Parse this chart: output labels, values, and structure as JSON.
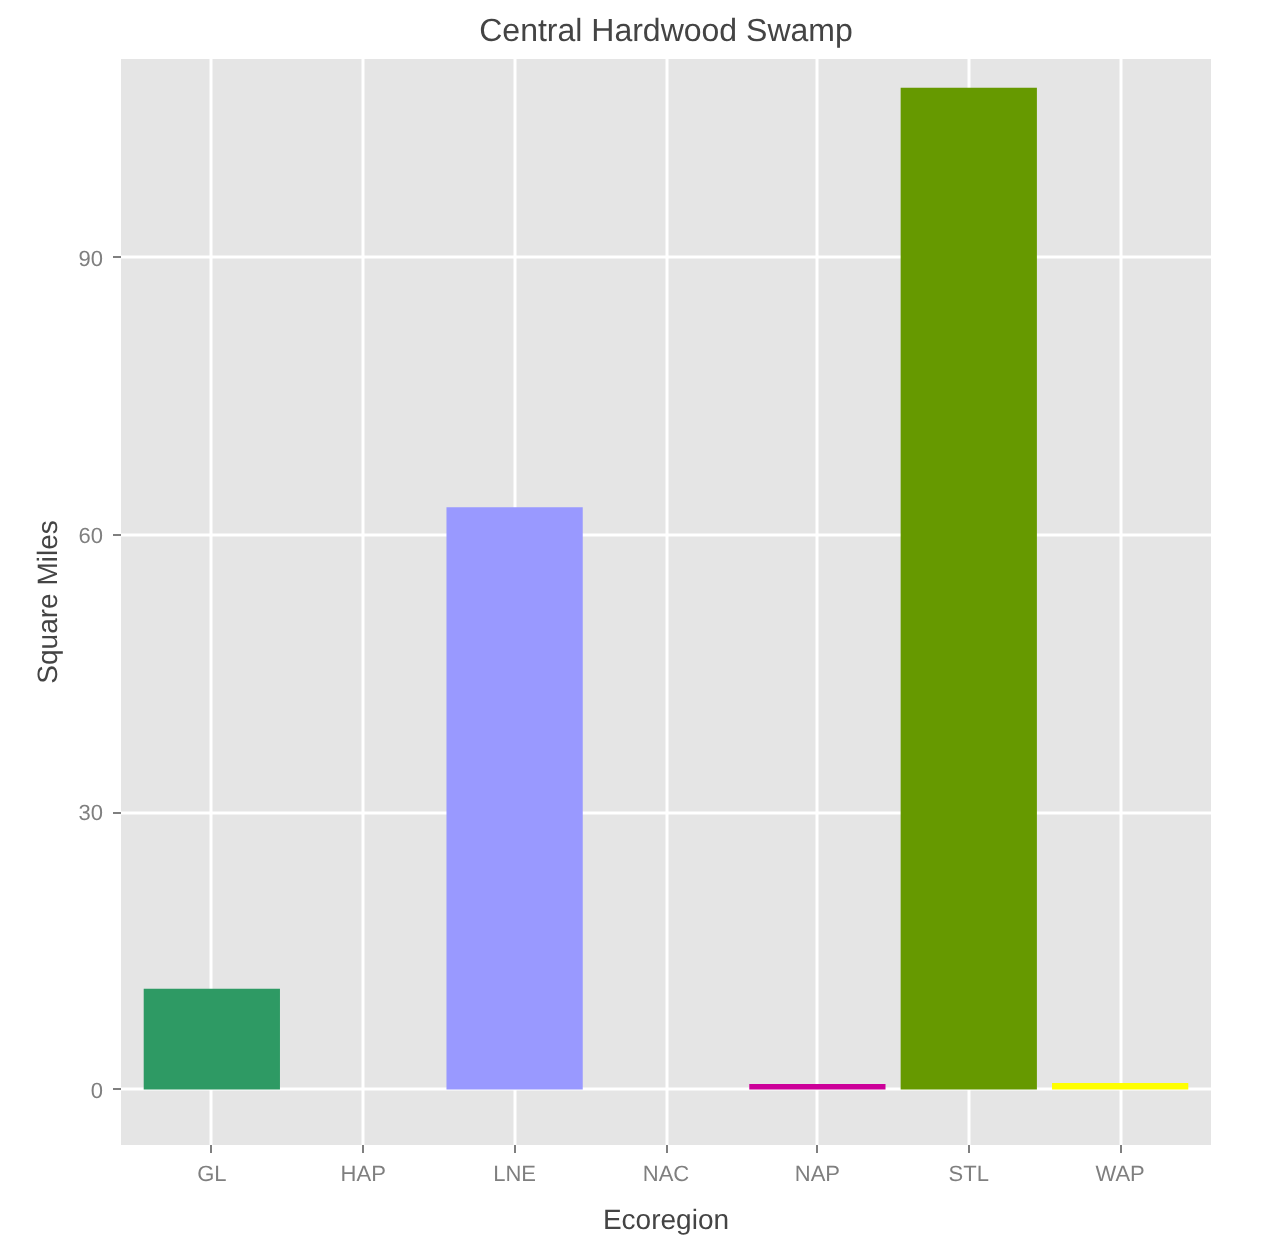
{
  "chart_data": {
    "type": "bar",
    "title": "Central Hardwood Swamp",
    "xlabel": "Ecoregion",
    "ylabel": "Square Miles",
    "categories": [
      "GL",
      "HAP",
      "LNE",
      "NAC",
      "NAP",
      "STL",
      "WAP"
    ],
    "values": [
      10.9,
      null,
      63.0,
      0.0,
      0.6,
      108.4,
      0.7
    ],
    "colors": [
      "#2e9a64",
      "#f0c8a8",
      "#9999ff",
      "#66ccff",
      "#cc0099",
      "#669900",
      "#ffff00"
    ],
    "ylim": [
      -6,
      111.5
    ],
    "yticks": [
      0,
      30,
      60,
      90
    ],
    "grid": true
  }
}
